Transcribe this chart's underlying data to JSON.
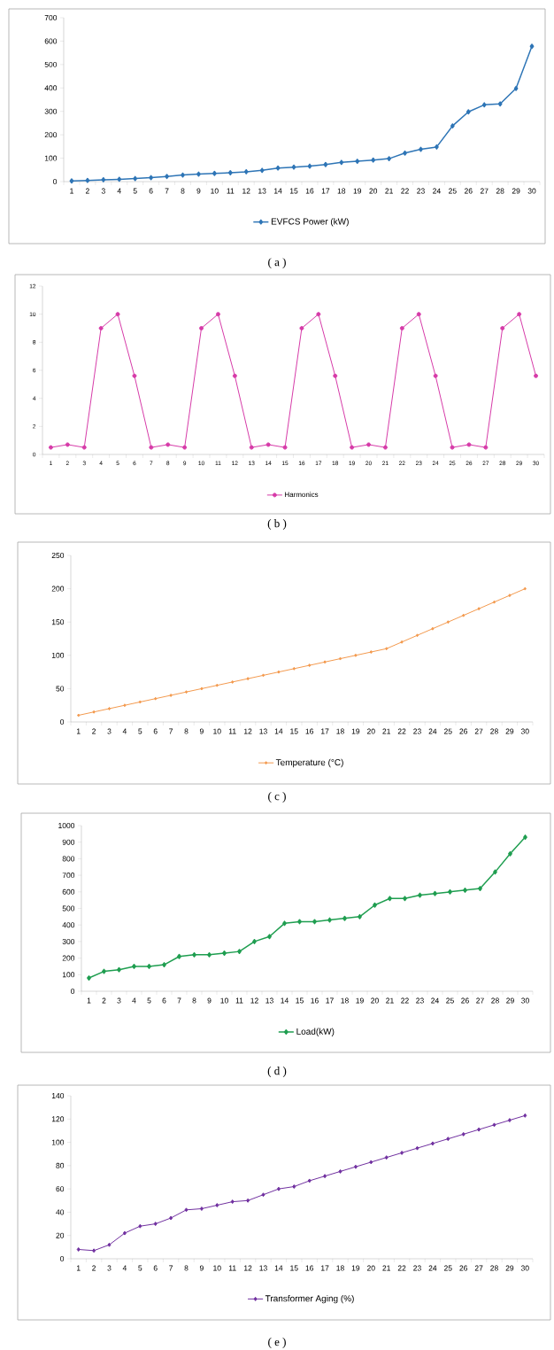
{
  "chart_data": [
    {
      "type": "line",
      "categories": [
        "1",
        "2",
        "3",
        "4",
        "5",
        "6",
        "7",
        "8",
        "9",
        "10",
        "11",
        "12",
        "13",
        "14",
        "15",
        "16",
        "17",
        "18",
        "19",
        "20",
        "21",
        "22",
        "23",
        "24",
        "25",
        "26",
        "27",
        "28",
        "29",
        "30"
      ],
      "series": [
        {
          "name": "EVFCS Power (kW)",
          "color": "#2e75b6",
          "values": [
            3,
            5,
            8,
            10,
            13,
            17,
            22,
            28,
            32,
            35,
            38,
            42,
            48,
            58,
            62,
            66,
            73,
            82,
            87,
            92,
            98,
            122,
            138,
            148,
            238,
            298,
            328,
            332,
            398,
            578
          ]
        }
      ],
      "ylim": [
        0,
        700
      ],
      "yticks": [
        0,
        100,
        200,
        300,
        400,
        500,
        600,
        700
      ],
      "marker": "diamond",
      "legend": "bottom",
      "annotations": [
        "( a )"
      ]
    },
    {
      "type": "line",
      "categories": [
        "1",
        "2",
        "3",
        "4",
        "5",
        "6",
        "7",
        "8",
        "9",
        "10",
        "11",
        "12",
        "13",
        "14",
        "15",
        "16",
        "17",
        "18",
        "19",
        "20",
        "21",
        "22",
        "23",
        "24",
        "25",
        "26",
        "27",
        "28",
        "29",
        "30"
      ],
      "series": [
        {
          "name": "Harmonics",
          "color": "#d63aa8",
          "values": [
            0.5,
            0.7,
            0.5,
            9,
            10,
            5.6,
            0.5,
            0.7,
            0.5,
            9,
            10,
            5.6,
            0.5,
            0.7,
            0.5,
            9,
            10,
            5.6,
            0.5,
            0.7,
            0.5,
            9,
            10,
            5.6,
            0.5,
            0.7,
            0.5,
            9,
            10,
            5.6
          ]
        }
      ],
      "ylim": [
        0,
        12
      ],
      "yticks": [
        0,
        2,
        4,
        6,
        8,
        10,
        12
      ],
      "marker": "circle",
      "legend": "bottom",
      "annotations": [
        "( b )"
      ]
    },
    {
      "type": "line",
      "categories": [
        "1",
        "2",
        "3",
        "4",
        "5",
        "6",
        "7",
        "8",
        "9",
        "10",
        "11",
        "12",
        "13",
        "14",
        "15",
        "16",
        "17",
        "18",
        "19",
        "20",
        "21",
        "22",
        "23",
        "24",
        "25",
        "26",
        "27",
        "28",
        "29",
        "30"
      ],
      "series": [
        {
          "name": "Temperature (°C)",
          "color": "#f39a4e",
          "values": [
            10,
            15,
            20,
            25,
            30,
            35,
            40,
            45,
            50,
            55,
            60,
            65,
            70,
            75,
            80,
            85,
            90,
            95,
            100,
            105,
            110,
            120,
            130,
            140,
            150,
            160,
            170,
            180,
            190,
            200
          ]
        }
      ],
      "ylim": [
        0,
        250
      ],
      "yticks": [
        0,
        50,
        100,
        150,
        200,
        250
      ],
      "marker": "diamond",
      "legend": "bottom",
      "annotations": [
        "( c )"
      ]
    },
    {
      "type": "line",
      "categories": [
        "1",
        "2",
        "3",
        "4",
        "5",
        "6",
        "7",
        "8",
        "9",
        "10",
        "11",
        "12",
        "13",
        "14",
        "15",
        "16",
        "17",
        "18",
        "19",
        "20",
        "21",
        "22",
        "23",
        "24",
        "25",
        "26",
        "27",
        "28",
        "29",
        "30"
      ],
      "series": [
        {
          "name": "Load(kW)",
          "color": "#1f9e50",
          "values": [
            80,
            120,
            130,
            150,
            150,
            160,
            210,
            220,
            220,
            230,
            240,
            300,
            330,
            410,
            420,
            420,
            430,
            440,
            450,
            520,
            560,
            560,
            580,
            590,
            600,
            610,
            620,
            720,
            830,
            930
          ]
        }
      ],
      "ylim": [
        0,
        1000
      ],
      "yticks": [
        0,
        100,
        200,
        300,
        400,
        500,
        600,
        700,
        800,
        900,
        1000
      ],
      "marker": "diamond",
      "legend": "bottom",
      "annotations": [
        "( d )"
      ]
    },
    {
      "type": "line",
      "categories": [
        "1",
        "2",
        "3",
        "4",
        "5",
        "6",
        "7",
        "8",
        "9",
        "10",
        "11",
        "12",
        "13",
        "14",
        "15",
        "16",
        "17",
        "18",
        "19",
        "20",
        "21",
        "22",
        "23",
        "24",
        "25",
        "26",
        "27",
        "28",
        "29",
        "30"
      ],
      "series": [
        {
          "name": "Transformer Aging (%)",
          "color": "#7030a0",
          "values": [
            8,
            7,
            12,
            22,
            28,
            30,
            35,
            42,
            43,
            46,
            49,
            50,
            55,
            60,
            62,
            67,
            71,
            75,
            79,
            83,
            87,
            91,
            95,
            99,
            103,
            107,
            111,
            115,
            119,
            123
          ]
        }
      ],
      "ylim": [
        0,
        140
      ],
      "yticks": [
        0,
        20,
        40,
        60,
        80,
        100,
        120,
        140
      ],
      "marker": "diamond",
      "legend": "bottom",
      "annotations": [
        "( e )"
      ]
    }
  ]
}
